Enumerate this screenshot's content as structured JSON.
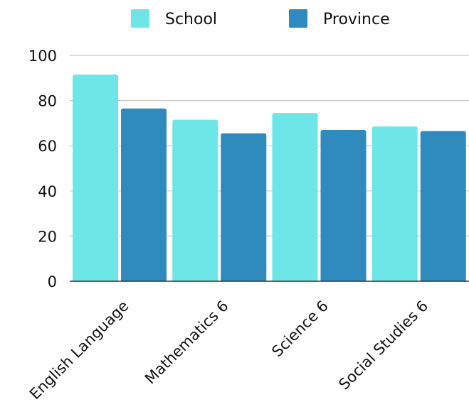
{
  "chart_data": {
    "type": "bar",
    "title": "",
    "xlabel": "",
    "ylabel": "",
    "categories": [
      "English Language",
      "Mathematics 6",
      "Science 6",
      "Social Studies 6"
    ],
    "series": [
      {
        "name": "School",
        "color": "#6ee6e8",
        "values": [
          91.5,
          71.5,
          74.5,
          68.5
        ]
      },
      {
        "name": "Province",
        "color": "#2f8bbd",
        "values": [
          76.5,
          65.5,
          67,
          66.5
        ]
      }
    ],
    "ylim": [
      0,
      100
    ],
    "yticks": [
      0,
      20,
      40,
      60,
      80,
      100
    ],
    "grid": true,
    "legend": "top-center"
  }
}
